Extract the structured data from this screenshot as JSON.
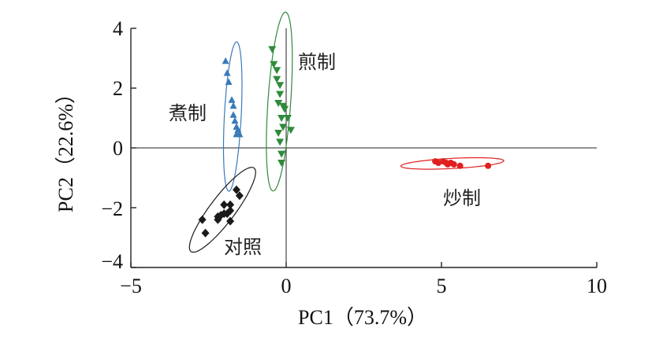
{
  "chart_data": {
    "type": "scatter",
    "xlabel": "PC1（73.7%）",
    "ylabel": "PC2（22.6%）",
    "xlim": [
      -5,
      10
    ],
    "ylim": [
      -4,
      4
    ],
    "x_ticks": [
      -5,
      0,
      5,
      10
    ],
    "y_ticks": [
      -4,
      -2,
      0,
      2,
      4
    ],
    "x_tick_labels": [
      "−5",
      "0",
      "5",
      "10"
    ],
    "y_tick_labels": [
      "−4",
      "−2",
      "0",
      "2",
      "4"
    ],
    "grid": false,
    "zero_lines": true,
    "series": [
      {
        "name": "煮制",
        "marker": "triangle-up",
        "color": "#3a7ab8",
        "points": [
          {
            "x": -1.95,
            "y": 2.9
          },
          {
            "x": -1.9,
            "y": 2.5
          },
          {
            "x": -1.85,
            "y": 2.2
          },
          {
            "x": -1.75,
            "y": 1.6
          },
          {
            "x": -1.7,
            "y": 1.4
          },
          {
            "x": -1.7,
            "y": 1.1
          },
          {
            "x": -1.65,
            "y": 0.9
          },
          {
            "x": -1.6,
            "y": 0.7
          },
          {
            "x": -1.55,
            "y": 0.6
          },
          {
            "x": -1.6,
            "y": 0.45
          },
          {
            "x": -1.5,
            "y": 0.45
          }
        ],
        "ellipse": {
          "cx": -1.72,
          "cy": 1.05,
          "rx": 2.5,
          "ry": 0.28,
          "angle_deg": -87
        }
      },
      {
        "name": "煎制",
        "marker": "triangle-down",
        "color": "#2e8b3a",
        "points": [
          {
            "x": -0.45,
            "y": 3.3
          },
          {
            "x": -0.4,
            "y": 2.8
          },
          {
            "x": -0.3,
            "y": 2.6
          },
          {
            "x": -0.3,
            "y": 2.3
          },
          {
            "x": -0.2,
            "y": 2.1
          },
          {
            "x": -0.2,
            "y": 1.8
          },
          {
            "x": -0.25,
            "y": 1.5
          },
          {
            "x": -0.1,
            "y": 1.4
          },
          {
            "x": -0.05,
            "y": 1.3
          },
          {
            "x": -0.15,
            "y": 1.0
          },
          {
            "x": 0.05,
            "y": 1.0
          },
          {
            "x": -0.1,
            "y": 0.7
          },
          {
            "x": 0.15,
            "y": 0.6
          },
          {
            "x": -0.25,
            "y": 0.5
          },
          {
            "x": -0.2,
            "y": 0.2
          },
          {
            "x": -0.15,
            "y": -0.2
          },
          {
            "x": -0.15,
            "y": -0.5
          }
        ],
        "ellipse": {
          "cx": -0.22,
          "cy": 1.55,
          "rx": 3.0,
          "ry": 0.38,
          "angle_deg": -86
        }
      },
      {
        "name": "炒制",
        "marker": "circle",
        "color": "#e02020",
        "points": [
          {
            "x": 4.8,
            "y": -0.45
          },
          {
            "x": 4.9,
            "y": -0.5
          },
          {
            "x": 5.05,
            "y": -0.45
          },
          {
            "x": 5.15,
            "y": -0.5
          },
          {
            "x": 5.2,
            "y": -0.55
          },
          {
            "x": 5.3,
            "y": -0.5
          },
          {
            "x": 5.4,
            "y": -0.55
          },
          {
            "x": 5.6,
            "y": -0.6
          },
          {
            "x": 6.5,
            "y": -0.6
          }
        ],
        "ellipse": {
          "cx": 5.35,
          "cy": -0.52,
          "rx": 1.72,
          "ry": 0.17,
          "angle_deg": -3
        }
      },
      {
        "name": "对照",
        "marker": "diamond",
        "color": "#1a1a1a",
        "points": [
          {
            "x": -1.6,
            "y": -1.4
          },
          {
            "x": -1.5,
            "y": -1.6
          },
          {
            "x": -1.8,
            "y": -1.9
          },
          {
            "x": -2.0,
            "y": -1.9
          },
          {
            "x": -1.8,
            "y": -2.1
          },
          {
            "x": -1.9,
            "y": -2.2
          },
          {
            "x": -2.1,
            "y": -2.25
          },
          {
            "x": -2.2,
            "y": -2.3
          },
          {
            "x": -2.0,
            "y": -2.2
          },
          {
            "x": -2.2,
            "y": -2.4
          },
          {
            "x": -2.7,
            "y": -2.4
          },
          {
            "x": -1.8,
            "y": -2.45
          },
          {
            "x": -2.6,
            "y": -2.85
          }
        ],
        "ellipse": {
          "cx": -2.05,
          "cy": -2.07,
          "rx": 1.75,
          "ry": 0.42,
          "angle_deg": -53
        }
      }
    ]
  }
}
